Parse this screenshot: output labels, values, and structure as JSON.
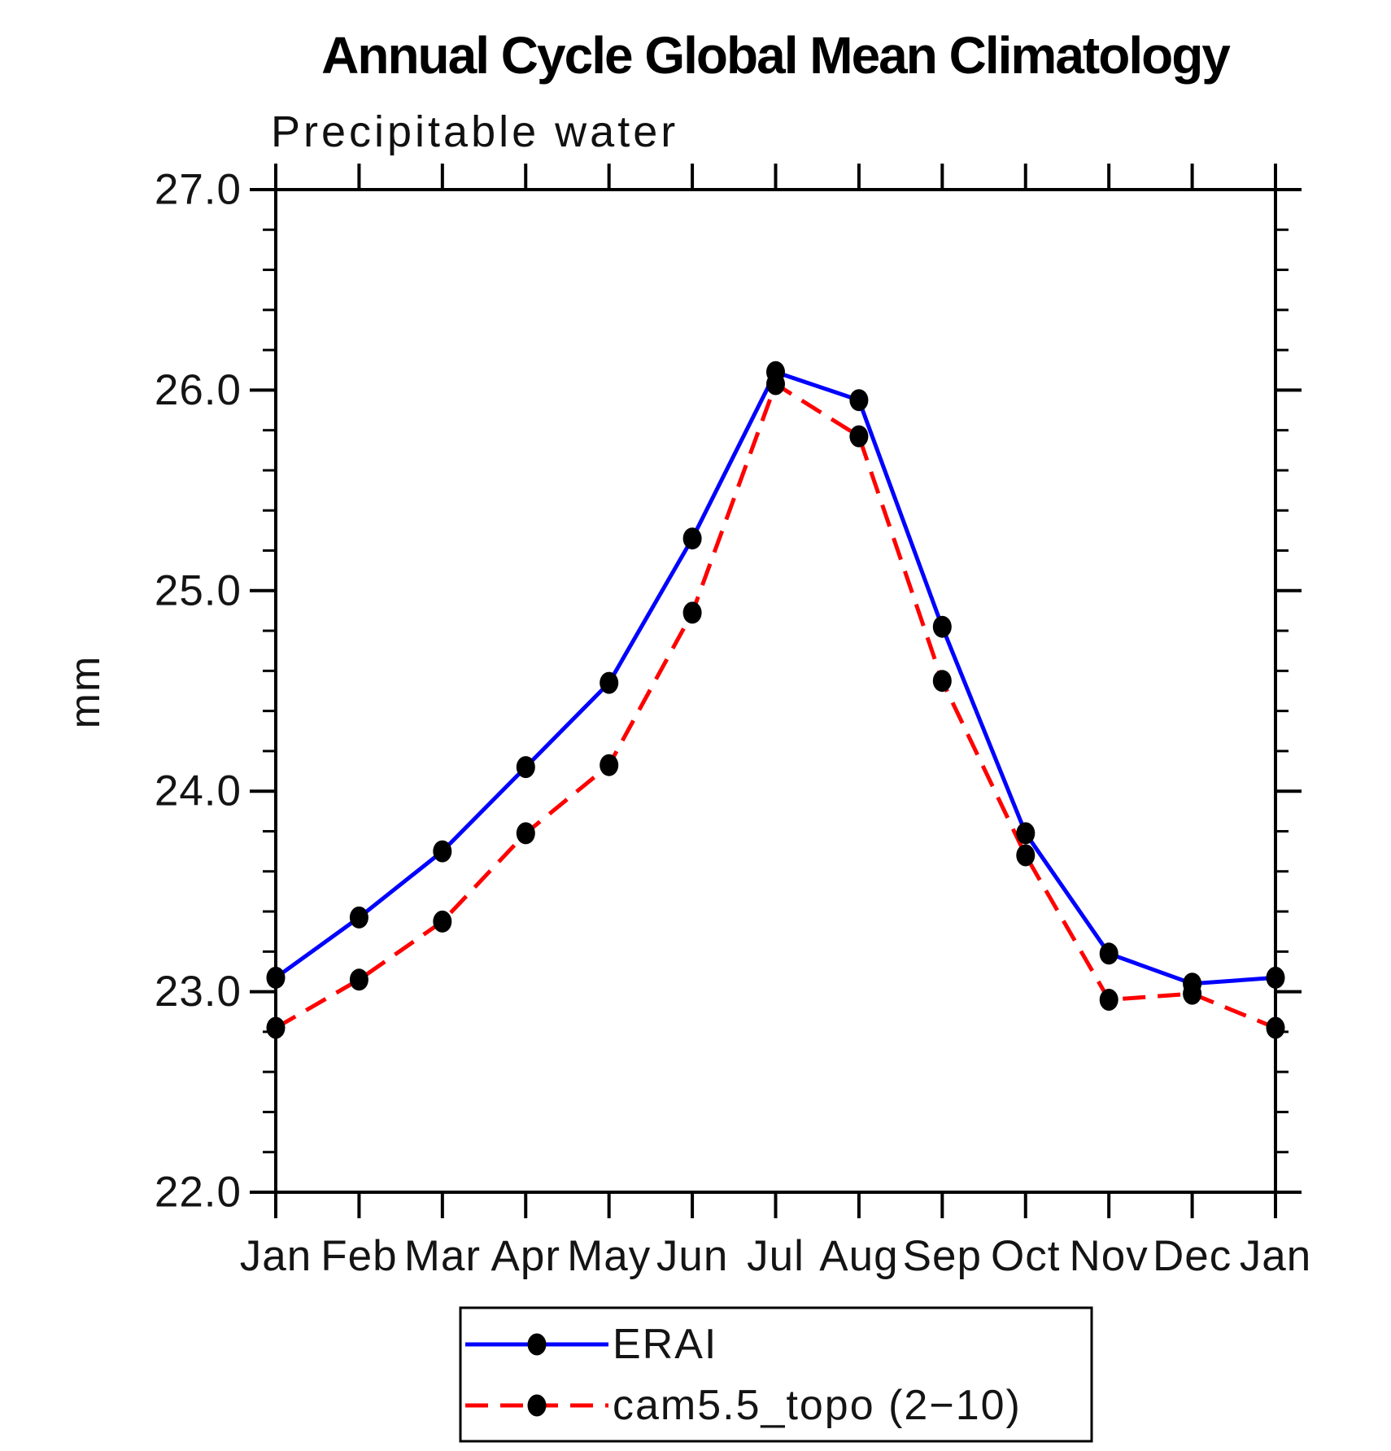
{
  "title": "Annual Cycle Global Mean Climatology",
  "subtitle": "Precipitable water",
  "chart_data": {
    "type": "line",
    "categories": [
      "Jan",
      "Feb",
      "Mar",
      "Apr",
      "May",
      "Jun",
      "Jul",
      "Aug",
      "Sep",
      "Oct",
      "Nov",
      "Dec",
      "Jan"
    ],
    "xlabel": "",
    "ylabel": "mm",
    "ylim": [
      22.0,
      27.0
    ],
    "ytick_major_interval": 1.0,
    "ytick_minor_interval": 0.2,
    "ytick_labels": [
      "22.0",
      "23.0",
      "24.0",
      "25.0",
      "26.0",
      "27.0"
    ],
    "grid": false,
    "legend_position": "bottom-center",
    "frame_color": "#000000",
    "series": [
      {
        "name": "ERAI",
        "color": "#0000ff",
        "line_style": "solid",
        "marker": "filled-circle",
        "marker_color": "#000000",
        "values": [
          23.07,
          23.37,
          23.7,
          24.12,
          24.54,
          25.26,
          26.09,
          25.95,
          24.82,
          23.79,
          23.19,
          23.04,
          23.07
        ]
      },
      {
        "name": "cam5.5_topo (2−10)",
        "color": "#ff0000",
        "line_style": "dashed",
        "marker": "filled-circle",
        "marker_color": "#000000",
        "values": [
          22.82,
          23.06,
          23.35,
          23.79,
          24.13,
          24.89,
          26.03,
          25.77,
          24.55,
          23.68,
          22.96,
          22.99,
          22.82
        ]
      }
    ]
  }
}
